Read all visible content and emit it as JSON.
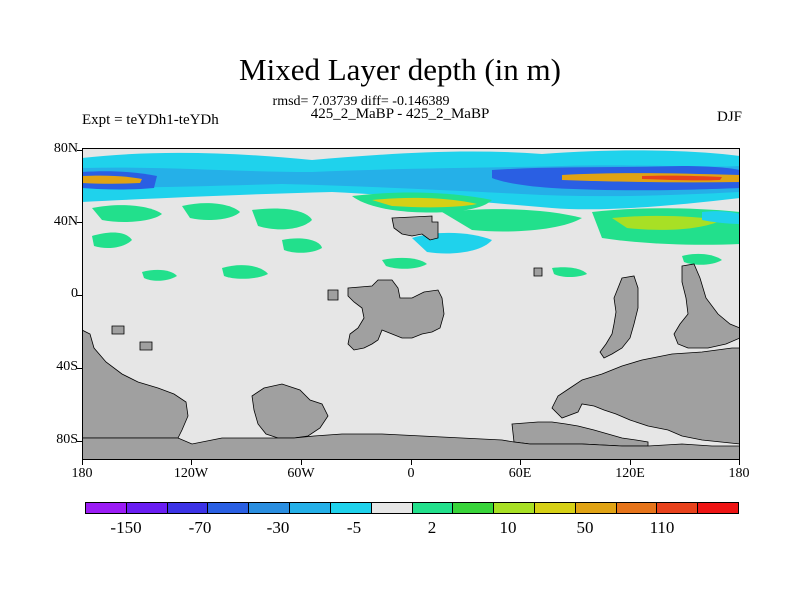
{
  "title": "Mixed Layer depth (in m)",
  "stats": "rmsd= 7.03739 diff= -0.146389",
  "subtitle": "425_2_MaBP - 425_2_MaBP",
  "left_label": "Expt = teYDh1-teYDh",
  "right_label": "DJF",
  "lat_labels": [
    "80N",
    "40N",
    "0",
    "40S",
    "80S"
  ],
  "lon_labels": [
    "180",
    "120W",
    "60W",
    "0",
    "60E",
    "120E",
    "180"
  ],
  "colorbar": {
    "colors": [
      "#9b1cf5",
      "#6a1ef2",
      "#3c33e6",
      "#2a5fe3",
      "#2a8ee0",
      "#25b0e8",
      "#1fd2ec",
      "#e6e6e6",
      "#22e08c",
      "#38d43a",
      "#a8e025",
      "#d6d016",
      "#e0a314",
      "#e6741a",
      "#e8421c",
      "#ee1414"
    ],
    "labels": [
      "-150",
      "-70",
      "-30",
      "-5",
      "2",
      "10",
      "50",
      "110"
    ]
  },
  "colors": {
    "land": "#a0a0a0",
    "ocean_background": "#e6e6e6"
  }
}
